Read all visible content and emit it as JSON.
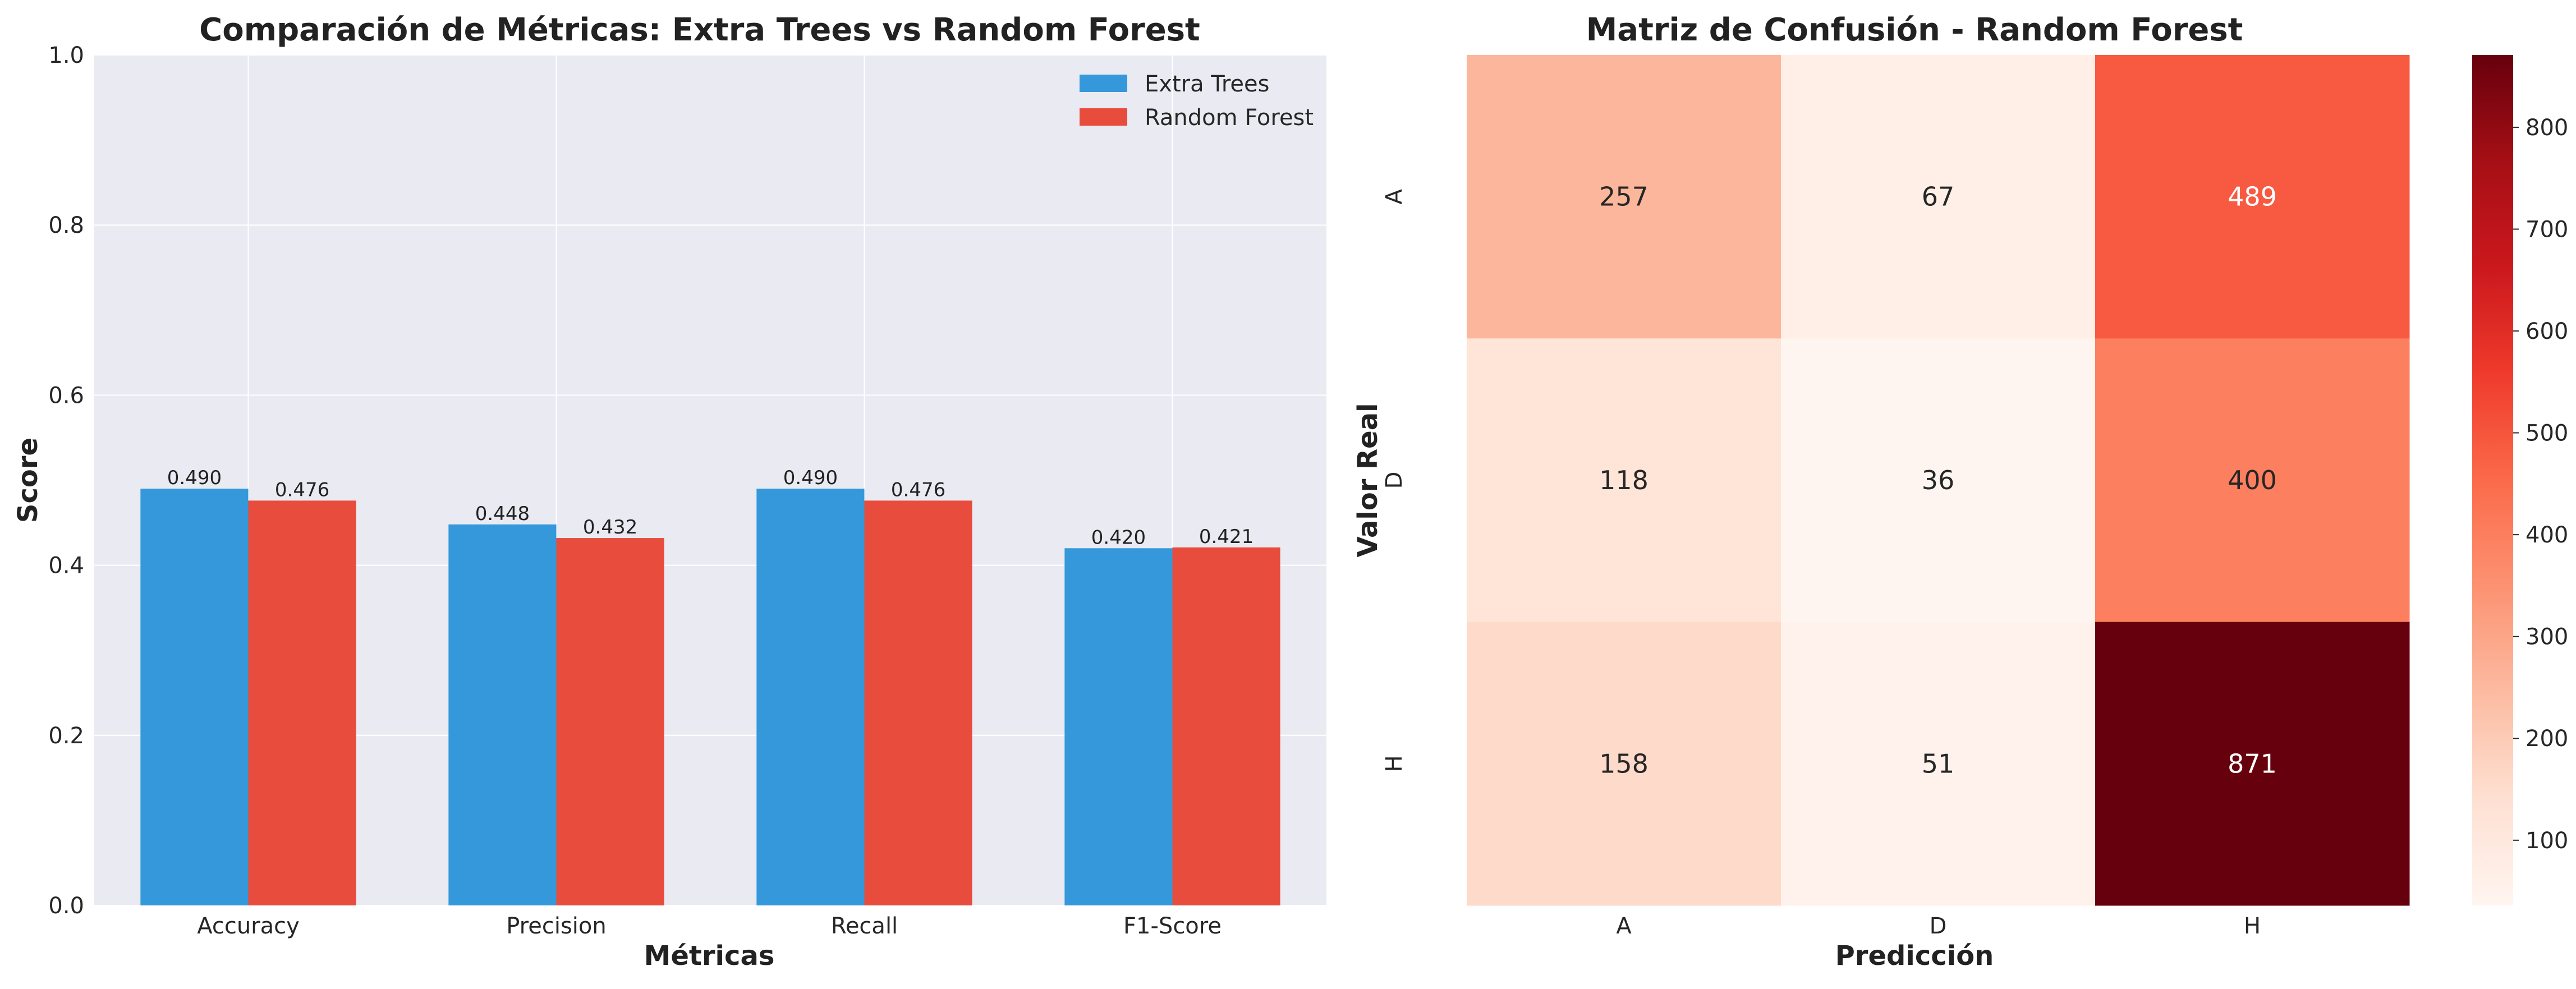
{
  "colors": {
    "extra_trees": "#3498db",
    "random_forest": "#e74c3c",
    "plot_background": "#eaeaf2",
    "grid": "#ffffff",
    "heatmap_colormap": "Reds"
  },
  "chart_data": [
    {
      "type": "bar",
      "title": "Comparación de Métricas: Extra Trees vs Random Forest",
      "xlabel": "Métricas",
      "ylabel": "Score",
      "categories": [
        "Accuracy",
        "Precision",
        "Recall",
        "F1-Score"
      ],
      "series": [
        {
          "name": "Extra Trees",
          "values": [
            0.49,
            0.448,
            0.49,
            0.42
          ],
          "labels": [
            "0.490",
            "0.448",
            "0.490",
            "0.420"
          ]
        },
        {
          "name": "Random Forest",
          "values": [
            0.476,
            0.432,
            0.476,
            0.421
          ],
          "labels": [
            "0.476",
            "0.432",
            "0.476",
            "0.421"
          ]
        }
      ],
      "ylim": [
        0,
        1
      ],
      "yticks": [
        "0.0",
        "0.2",
        "0.4",
        "0.6",
        "0.8",
        "1.0"
      ],
      "legend": "top-right",
      "grid": true
    },
    {
      "type": "heatmap",
      "title": "Matriz de Confusión - Random Forest",
      "xlabel": "Predicción",
      "ylabel": "Valor Real",
      "x_categories": [
        "A",
        "D",
        "H"
      ],
      "y_categories": [
        "A",
        "D",
        "H"
      ],
      "values": [
        [
          257,
          67,
          489
        ],
        [
          118,
          36,
          400
        ],
        [
          158,
          51,
          871
        ]
      ],
      "colorbar": {
        "min": 36,
        "max": 871,
        "ticks": [
          "100",
          "200",
          "300",
          "400",
          "500",
          "600",
          "700",
          "800"
        ]
      }
    }
  ]
}
